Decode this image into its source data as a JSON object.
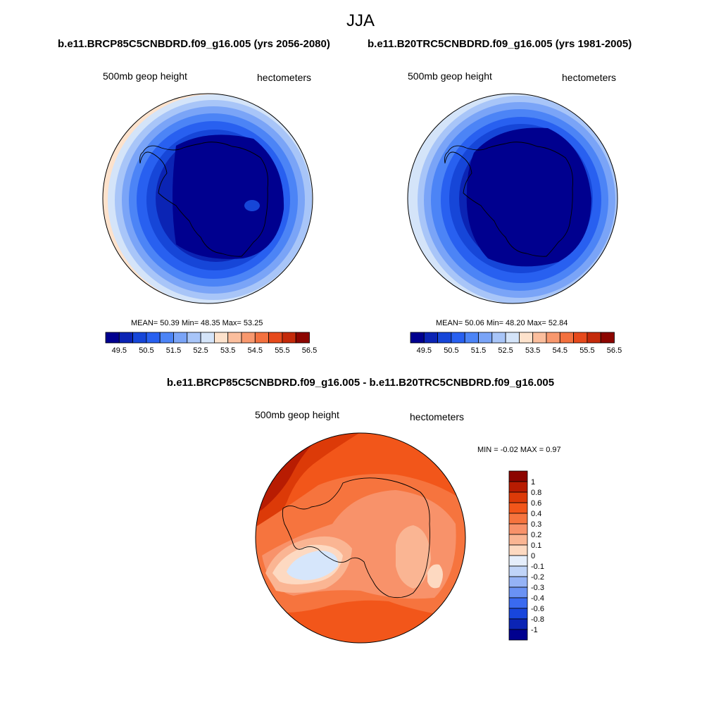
{
  "page": {
    "season": "JJA",
    "diff_title": "b.e11.BRCP85C5CNBDRD.f09_g16.005 - b.e11.B20TRC5CNBDRD.f09_g16.005"
  },
  "panels": [
    {
      "case_title": "b.e11.BRCP85C5CNBDRD.f09_g16.005 (yrs 2056-2080)",
      "variable": "500mb geop height",
      "units": "hectometers",
      "stats": "MEAN=  50.39  Min=  48.35  Max=  53.25",
      "mean": 50.39,
      "min": 48.35,
      "max": 53.25
    },
    {
      "case_title": "b.e11.B20TRC5CNBDRD.f09_g16.005 (yrs 1981-2005)",
      "variable": "500mb geop height",
      "units": "hectometers",
      "stats": "MEAN=  50.06  Min=  48.20  Max=  52.84",
      "mean": 50.06,
      "min": 48.2,
      "max": 52.84
    },
    {
      "variable": "500mb geop height",
      "units": "hectometers",
      "stats": "MIN =  -0.02 MAX =   0.97",
      "min": -0.02,
      "max": 0.97
    }
  ],
  "legend_abs": {
    "tick_labels": [
      "49.5",
      "50.5",
      "51.5",
      "52.5",
      "53.5",
      "54.5",
      "55.5",
      "56.5"
    ],
    "colors": [
      "#00008f",
      "#0b24b4",
      "#1646d8",
      "#2860f0",
      "#4c84f6",
      "#7aa4f7",
      "#a8c5f8",
      "#d4e4f9",
      "#fde2cc",
      "#fbbe9d",
      "#f8986e",
      "#f3713f",
      "#e64a1c",
      "#c42a0a",
      "#8c0500"
    ]
  },
  "legend_diff": {
    "tick_labels": [
      "1",
      "0.8",
      "0.6",
      "0.4",
      "0.3",
      "0.2",
      "0.1",
      "0",
      "-0.1",
      "-0.2",
      "-0.3",
      "-0.4",
      "-0.6",
      "-0.8",
      "-1"
    ],
    "colors": [
      "#8c0500",
      "#b81c02",
      "#dc3a08",
      "#f2561a",
      "#f6743e",
      "#f8926a",
      "#fab593",
      "#fdd9c1",
      "#e5eefb",
      "#c0d4f8",
      "#95b3f6",
      "#6a92f4",
      "#3a6af0",
      "#1846dc",
      "#0b24b4",
      "#00008f"
    ]
  },
  "map_colors": {
    "ocean_levels": [
      "#00008f",
      "#0b24b4",
      "#1646d8",
      "#2860f0",
      "#4c84f6",
      "#7aa4f7",
      "#a8c5f8",
      "#d4e4f9",
      "#fde2cc"
    ],
    "diff_levels": [
      "#b81c02",
      "#dc3a08",
      "#f2561a",
      "#f6743e",
      "#f8926a",
      "#fab593",
      "#fdd9c1",
      "#d6e6fb"
    ],
    "coast": "#000000"
  }
}
